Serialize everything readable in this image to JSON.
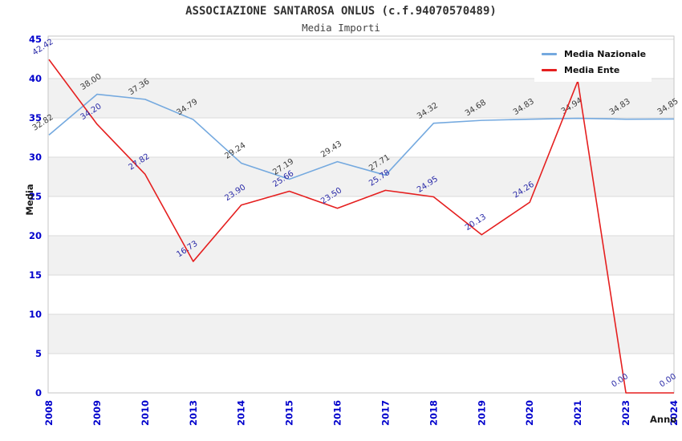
{
  "header": {
    "title": "ASSOCIAZIONE SANTAROSA ONLUS (c.f.94070570489)",
    "subtitle": "Media Importi"
  },
  "chart_data": {
    "type": "line",
    "title": "ASSOCIAZIONE SANTAROSA ONLUS (c.f.94070570489)",
    "subtitle": "Media Importi",
    "xlabel": "Anno",
    "ylabel": "Media",
    "categories": [
      "2008",
      "2009",
      "2010",
      "2013",
      "2014",
      "2015",
      "2016",
      "2017",
      "2018",
      "2019",
      "2020",
      "2021",
      "2023",
      "2024"
    ],
    "series": [
      {
        "name": "Media Nazionale",
        "line_color": "#74a9df",
        "label_color": "#3c3c3c",
        "values": [
          32.82,
          38.0,
          37.36,
          34.79,
          29.24,
          27.19,
          29.43,
          27.71,
          34.32,
          34.68,
          34.83,
          34.94,
          34.83,
          34.85
        ],
        "hidden_label_indexes": []
      },
      {
        "name": "Media Ente",
        "line_color": "#e51f1f",
        "label_color": "#2a2aa8",
        "values": [
          42.42,
          34.2,
          27.82,
          16.73,
          23.9,
          25.66,
          23.5,
          25.78,
          24.95,
          20.13,
          24.26,
          39.7,
          0.0,
          0.0
        ],
        "hidden_label_indexes": [
          11
        ]
      }
    ],
    "ylim": [
      0,
      45
    ],
    "ytick_step": 5,
    "yticks": [
      "0",
      "5",
      "10",
      "15",
      "20",
      "25",
      "30",
      "35",
      "40",
      "45"
    ],
    "grid": "horizontal",
    "legend_position": "top-right",
    "colors": {
      "axis_tick_label": "#0101cc",
      "band_fill": "#f1f1f1",
      "grid_line": "#dadada",
      "plot_border": "#c6c6c6",
      "background": "#ffffff"
    }
  }
}
